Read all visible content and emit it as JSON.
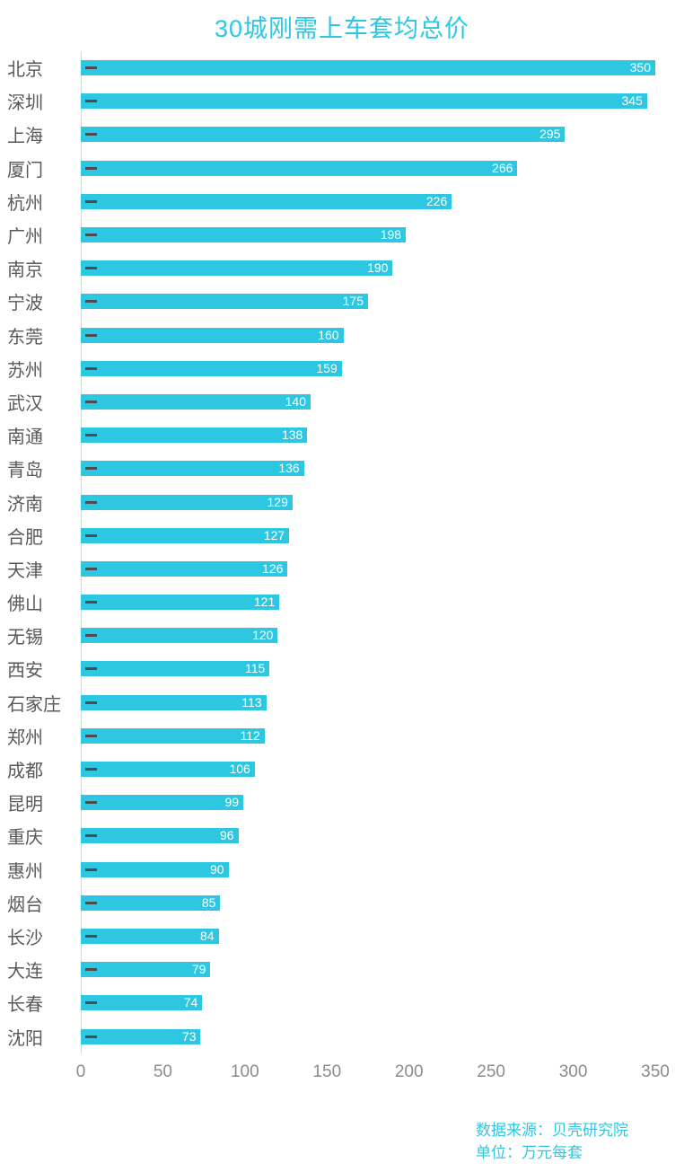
{
  "title": "30城刚需上车套均总价",
  "chart_data": {
    "type": "bar",
    "orientation": "horizontal",
    "title": "30城刚需上车套均总价",
    "categories": [
      "北京",
      "深圳",
      "上海",
      "厦门",
      "杭州",
      "广州",
      "南京",
      "宁波",
      "东莞",
      "苏州",
      "武汉",
      "南通",
      "青岛",
      "济南",
      "合肥",
      "天津",
      "佛山",
      "无锡",
      "西安",
      "石家庄",
      "郑州",
      "成都",
      "昆明",
      "重庆",
      "惠州",
      "烟台",
      "长沙",
      "大连",
      "长春",
      "沈阳"
    ],
    "values": [
      350,
      345,
      295,
      266,
      226,
      198,
      190,
      175,
      160,
      159,
      140,
      138,
      136,
      129,
      127,
      126,
      121,
      120,
      115,
      113,
      112,
      106,
      99,
      96,
      90,
      85,
      84,
      79,
      74,
      73
    ],
    "xlim": [
      0,
      350
    ],
    "x_ticks": [
      0,
      50,
      100,
      150,
      200,
      250,
      300,
      350
    ],
    "xlabel": "",
    "ylabel": "",
    "grid": false,
    "legend": "none",
    "bar_color": "#2ec7e2",
    "value_label_color": "#ffffff",
    "unit": "万元每套"
  },
  "footer": {
    "source": "数据来源：贝壳研究院",
    "unit": "单位：万元每套"
  }
}
